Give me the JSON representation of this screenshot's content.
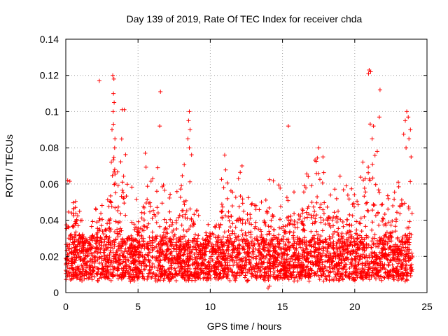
{
  "chart_data": {
    "type": "scatter",
    "title": "Day 139 of 2019, Rate Of TEC Index for receiver chda",
    "xlabel": "GPS time / hours",
    "ylabel": "ROTI / TECUs",
    "xlim": [
      0,
      25
    ],
    "ylim": [
      0,
      0.14
    ],
    "xticks": [
      0,
      5,
      10,
      15,
      20,
      25
    ],
    "xtick_labels": [
      "0",
      "5",
      "10",
      "15",
      "20",
      "25"
    ],
    "yticks": [
      0,
      0.02,
      0.04,
      0.06,
      0.08,
      0.1,
      0.12,
      0.14
    ],
    "ytick_labels": [
      "0",
      "0.02",
      "0.04",
      "0.06",
      "0.08",
      "0.1",
      "0.12",
      "0.14"
    ],
    "grid": true,
    "marker": "+",
    "series_color": "#ff0000",
    "x_data_range": [
      0,
      24
    ],
    "baseline_band": [
      0.008,
      0.03
    ],
    "baseline_level": 0.018,
    "point_density_per_hour": 420,
    "cluster_envelope": [
      [
        0.0,
        0.065
      ],
      [
        0.5,
        0.068
      ],
      [
        1.0,
        0.045
      ],
      [
        1.5,
        0.035
      ],
      [
        2.0,
        0.045
      ],
      [
        2.5,
        0.06
      ],
      [
        3.0,
        0.062
      ],
      [
        3.3,
        0.12
      ],
      [
        3.6,
        0.065
      ],
      [
        4.0,
        0.1
      ],
      [
        4.5,
        0.06
      ],
      [
        5.0,
        0.055
      ],
      [
        5.5,
        0.077
      ],
      [
        6.0,
        0.07
      ],
      [
        6.5,
        0.07
      ],
      [
        7.0,
        0.058
      ],
      [
        7.5,
        0.055
      ],
      [
        8.0,
        0.06
      ],
      [
        8.5,
        0.1
      ],
      [
        9.0,
        0.05
      ],
      [
        9.5,
        0.035
      ],
      [
        10.0,
        0.04
      ],
      [
        10.5,
        0.055
      ],
      [
        11.0,
        0.076
      ],
      [
        11.5,
        0.06
      ],
      [
        12.0,
        0.07
      ],
      [
        12.5,
        0.065
      ],
      [
        13.0,
        0.055
      ],
      [
        13.5,
        0.05
      ],
      [
        14.0,
        0.07
      ],
      [
        14.5,
        0.065
      ],
      [
        15.0,
        0.055
      ],
      [
        15.5,
        0.06
      ],
      [
        16.0,
        0.06
      ],
      [
        16.5,
        0.065
      ],
      [
        17.0,
        0.075
      ],
      [
        17.5,
        0.078
      ],
      [
        18.0,
        0.07
      ],
      [
        18.5,
        0.065
      ],
      [
        19.0,
        0.065
      ],
      [
        19.5,
        0.058
      ],
      [
        20.0,
        0.06
      ],
      [
        20.5,
        0.065
      ],
      [
        21.0,
        0.123
      ],
      [
        21.5,
        0.09
      ],
      [
        22.0,
        0.07
      ],
      [
        22.5,
        0.055
      ],
      [
        23.0,
        0.06
      ],
      [
        23.5,
        0.1
      ],
      [
        24.0,
        0.065
      ]
    ],
    "outliers": [
      [
        2.32,
        0.117
      ],
      [
        3.25,
        0.12
      ],
      [
        3.33,
        0.118
      ],
      [
        3.3,
        0.11
      ],
      [
        3.35,
        0.105
      ],
      [
        3.28,
        0.1
      ],
      [
        3.3,
        0.093
      ],
      [
        3.2,
        0.09
      ],
      [
        3.4,
        0.085
      ],
      [
        3.38,
        0.08
      ],
      [
        3.9,
        0.101
      ],
      [
        4.05,
        0.101
      ],
      [
        3.15,
        0.072
      ],
      [
        6.55,
        0.111
      ],
      [
        6.5,
        0.092
      ],
      [
        8.55,
        0.1
      ],
      [
        8.5,
        0.095
      ],
      [
        8.6,
        0.09
      ],
      [
        8.45,
        0.085
      ],
      [
        8.55,
        0.08
      ],
      [
        15.4,
        0.092
      ],
      [
        21.0,
        0.123
      ],
      [
        21.1,
        0.122
      ],
      [
        20.95,
        0.121
      ],
      [
        21.75,
        0.112
      ],
      [
        21.7,
        0.097
      ],
      [
        21.3,
        0.092
      ],
      [
        21.2,
        0.085
      ],
      [
        23.6,
        0.1
      ],
      [
        23.7,
        0.097
      ],
      [
        23.5,
        0.095
      ],
      [
        23.85,
        0.09
      ],
      [
        23.75,
        0.085
      ],
      [
        23.55,
        0.08
      ],
      [
        23.9,
        0.075
      ],
      [
        14.0,
        0.0025
      ],
      [
        14.1,
        0.0035
      ],
      [
        17.5,
        0.08
      ],
      [
        17.8,
        0.075
      ],
      [
        11.0,
        0.076
      ],
      [
        5.5,
        0.077
      ],
      [
        12.2,
        0.07
      ]
    ]
  }
}
